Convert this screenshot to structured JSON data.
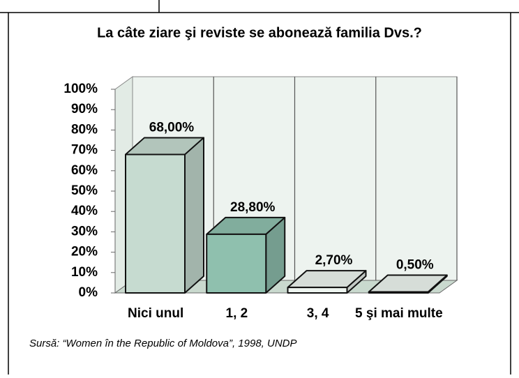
{
  "chart_data": {
    "type": "bar3d",
    "title": "La câte ziare şi reviste se abonează familia Dvs.?",
    "categories": [
      "Nici unul",
      "1, 2",
      "3, 4",
      "5 şi mai multe"
    ],
    "values": [
      68,
      28.8,
      2.7,
      0.5
    ],
    "value_labels": [
      "68,00%",
      "28,80%",
      "2,70%",
      "0,50%"
    ],
    "colors": [
      "#c6dbd0",
      "#8fc0ae",
      "#eef5f0",
      "#eef5f0"
    ],
    "ylim": [
      0,
      100
    ],
    "yticks": [
      {
        "value": 0,
        "label": "0%"
      },
      {
        "value": 10,
        "label": "10%"
      },
      {
        "value": 20,
        "label": "20%"
      },
      {
        "value": 30,
        "label": "30%"
      },
      {
        "value": 40,
        "label": "40%"
      },
      {
        "value": 50,
        "label": "50%"
      },
      {
        "value": 60,
        "label": "60%"
      },
      {
        "value": 70,
        "label": "70%"
      },
      {
        "value": 80,
        "label": "80%"
      },
      {
        "value": 90,
        "label": "90%"
      },
      {
        "value": 100,
        "label": "100%"
      }
    ],
    "source": "Sursă: “Women în the Republic of Moldova”, 1998, UNDP"
  }
}
